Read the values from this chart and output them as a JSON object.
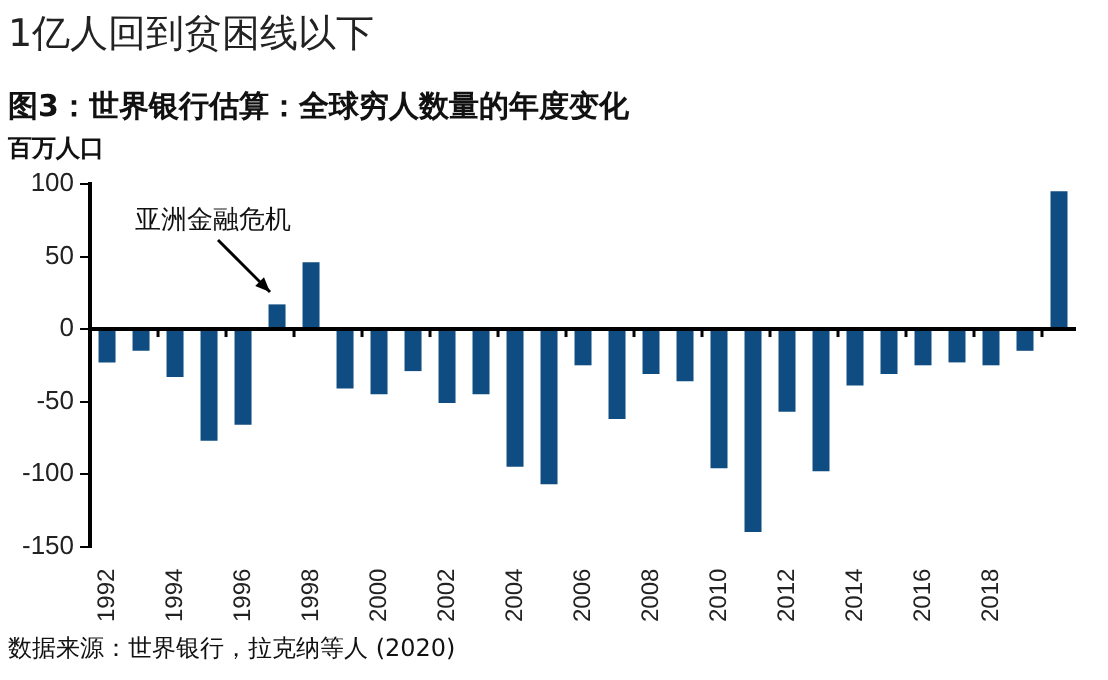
{
  "chart_data": {
    "type": "bar",
    "title": "1亿人回到贫困线以下",
    "subtitle": "图3：世界银行估算：全球穷人数量的年度变化",
    "ylabel": "百万人口",
    "categories": [
      "1992",
      null,
      "1994",
      null,
      "1996",
      null,
      "1998",
      null,
      "2000",
      null,
      "2002",
      null,
      "2004",
      null,
      "2006",
      null,
      "2008",
      null,
      "2010",
      null,
      "2012",
      null,
      "2014",
      null,
      "2016",
      null,
      "2018",
      null,
      null
    ],
    "values": [
      -23,
      -15,
      -33,
      -77,
      -66,
      17,
      46,
      -41,
      -45,
      -29,
      -51,
      -45,
      -95,
      -107,
      -25,
      -62,
      -31,
      -36,
      -96,
      -140,
      -57,
      -98,
      -39,
      -31,
      -25,
      -23,
      -25,
      -15,
      95
    ],
    "color": "#0f4c81",
    "ylim": [
      -150,
      100
    ],
    "yticks": [
      -150,
      -100,
      -50,
      0,
      50,
      100
    ],
    "legend": false,
    "annotations": [
      "亚洲金融危机",
      "数据来源：世界银行，拉克纳等人 (2020)"
    ]
  }
}
